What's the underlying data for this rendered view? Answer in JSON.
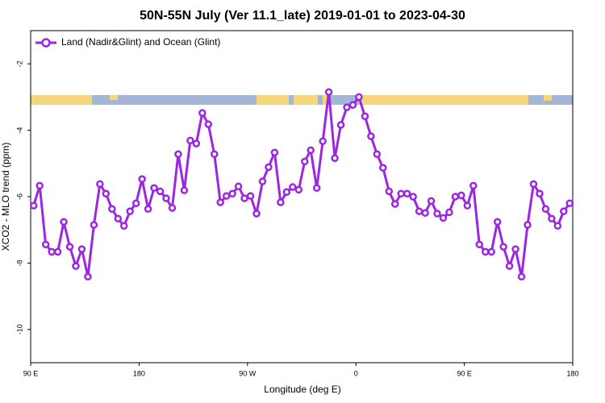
{
  "chart_data": {
    "type": "line",
    "title": "50N-55N July (Ver 11.1_late)   2019-01-01 to 2023-04-30",
    "xlabel": "Longitude (deg E)",
    "ylabel": "XCO2 - MLO trend (ppm)",
    "xlim": [
      90,
      540
    ],
    "ylim": [
      -11,
      -1
    ],
    "xticks": [
      {
        "value": 90,
        "label": "90 E"
      },
      180,
      {
        "value": 270,
        "label": "90 W"
      },
      {
        "value": 360,
        "label": "0"
      },
      {
        "value": 450,
        "label": "90 E"
      },
      {
        "value": 540,
        "label": "180"
      }
    ],
    "yticks": [
      -2,
      -4,
      -6,
      -8,
      -10
    ],
    "legend": "upper left",
    "x": [
      92.5,
      97.5,
      102.5,
      107.5,
      112.5,
      117.5,
      122.5,
      127.5,
      132.5,
      137.5,
      142.5,
      147.5,
      152.5,
      157.5,
      162.5,
      167.5,
      172.5,
      177.5,
      182.5,
      187.5,
      192.5,
      197.5,
      202.5,
      207.5,
      212.5,
      217.5,
      222.5,
      227.5,
      232.5,
      237.5,
      242.5,
      247.5,
      252.5,
      257.5,
      262.5,
      267.5,
      272.5,
      277.5,
      282.5,
      287.5,
      292.5,
      297.5,
      302.5,
      307.5,
      312.5,
      317.5,
      322.5,
      327.5,
      332.5,
      337.5,
      342.5,
      347.5,
      352.5,
      357.5,
      362.5,
      367.5,
      372.5,
      377.5,
      382.5,
      387.5,
      392.5,
      397.5,
      402.5,
      407.5,
      412.5,
      417.5,
      422.5,
      427.5,
      432.5,
      437.5,
      442.5,
      447.5,
      452.5,
      457.5,
      462.5,
      467.5,
      472.5,
      477.5,
      482.5,
      487.5,
      492.5,
      497.5,
      502.5,
      507.5,
      512.5,
      517.5,
      522.5,
      527.5,
      532.5,
      537.5
    ],
    "series": [
      {
        "name": "Land (Nadir&Glint) and Ocean (Glint)",
        "color": "#9b27e0",
        "values": [
          -6.27,
          -5.67,
          -7.44,
          -7.66,
          -7.66,
          -6.76,
          -7.51,
          -8.09,
          -7.58,
          -8.41,
          -6.85,
          -5.62,
          -5.91,
          -6.37,
          -6.66,
          -6.88,
          -6.44,
          -6.2,
          -5.47,
          -6.37,
          -5.74,
          -5.84,
          -6.05,
          -6.34,
          -4.72,
          -5.81,
          -4.31,
          -4.4,
          -3.48,
          -3.82,
          -4.72,
          -6.17,
          -5.98,
          -5.91,
          -5.69,
          -6.05,
          -5.98,
          -6.51,
          -5.54,
          -5.11,
          -4.67,
          -6.17,
          -5.86,
          -5.71,
          -5.79,
          -4.94,
          -4.6,
          -5.74,
          -4.33,
          -2.85,
          -4.84,
          -3.84,
          -3.31,
          -3.24,
          -3.0,
          -3.58,
          -4.18,
          -4.72,
          -5.13,
          -5.84,
          -6.22,
          -5.91,
          -5.91,
          -6.0,
          -6.44,
          -6.49,
          -6.13,
          -6.51,
          -6.64,
          -6.47,
          -6.0,
          -5.96,
          -6.27,
          -5.67,
          -7.44,
          -7.66,
          -7.66,
          -6.76,
          -7.51,
          -8.09,
          -7.58,
          -8.41,
          -6.85,
          -5.62,
          -5.91,
          -6.37,
          -6.66,
          -6.88,
          -6.44,
          -6.2
        ]
      }
    ]
  }
}
